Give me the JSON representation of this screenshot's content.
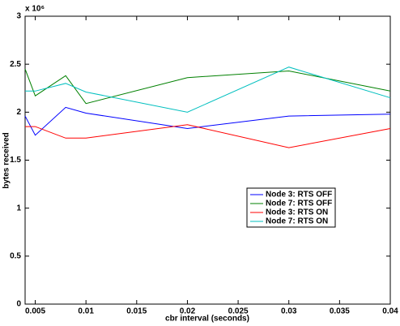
{
  "chart_data": {
    "type": "line",
    "x_label": "cbr interval (seconds)",
    "y_label": "bytes received",
    "y_exponent_label": "x 10⁶",
    "x": [
      0.004,
      0.005,
      0.008,
      0.01,
      0.02,
      0.03,
      0.04
    ],
    "series": [
      {
        "name": "Node 3: RTS OFF",
        "color": "#0000ff",
        "values": [
          1960000,
          1760000,
          2050000,
          1990000,
          1830000,
          1960000,
          1980000
        ]
      },
      {
        "name": "Node 7: RTS OFF",
        "color": "#008000",
        "values": [
          2450000,
          2170000,
          2380000,
          2090000,
          2360000,
          2430000,
          2220000
        ]
      },
      {
        "name": "Node 3: RTS ON",
        "color": "#ff0000",
        "values": [
          1850000,
          1850000,
          1730000,
          1730000,
          1870000,
          1630000,
          1830000
        ]
      },
      {
        "name": "Node 7: RTS ON",
        "color": "#00bfbf",
        "values": [
          2220000,
          2220000,
          2300000,
          2210000,
          2000000,
          2470000,
          2150000
        ]
      }
    ],
    "xlim": [
      0.004,
      0.04
    ],
    "xticks": [
      0.005,
      0.01,
      0.015,
      0.02,
      0.025,
      0.03,
      0.035,
      0.04
    ],
    "ylim": [
      0,
      3000000
    ],
    "yticks": [
      0,
      {
        "value": 500000,
        "label": "0.5"
      },
      {
        "value": 1000000,
        "label": "1"
      },
      {
        "value": 1500000,
        "label": "1.5"
      },
      {
        "value": 2000000,
        "label": "2"
      },
      {
        "value": 2500000,
        "label": "2.5"
      },
      {
        "value": 3000000,
        "label": "3"
      }
    ],
    "grid": false,
    "legend": "lower-right"
  }
}
